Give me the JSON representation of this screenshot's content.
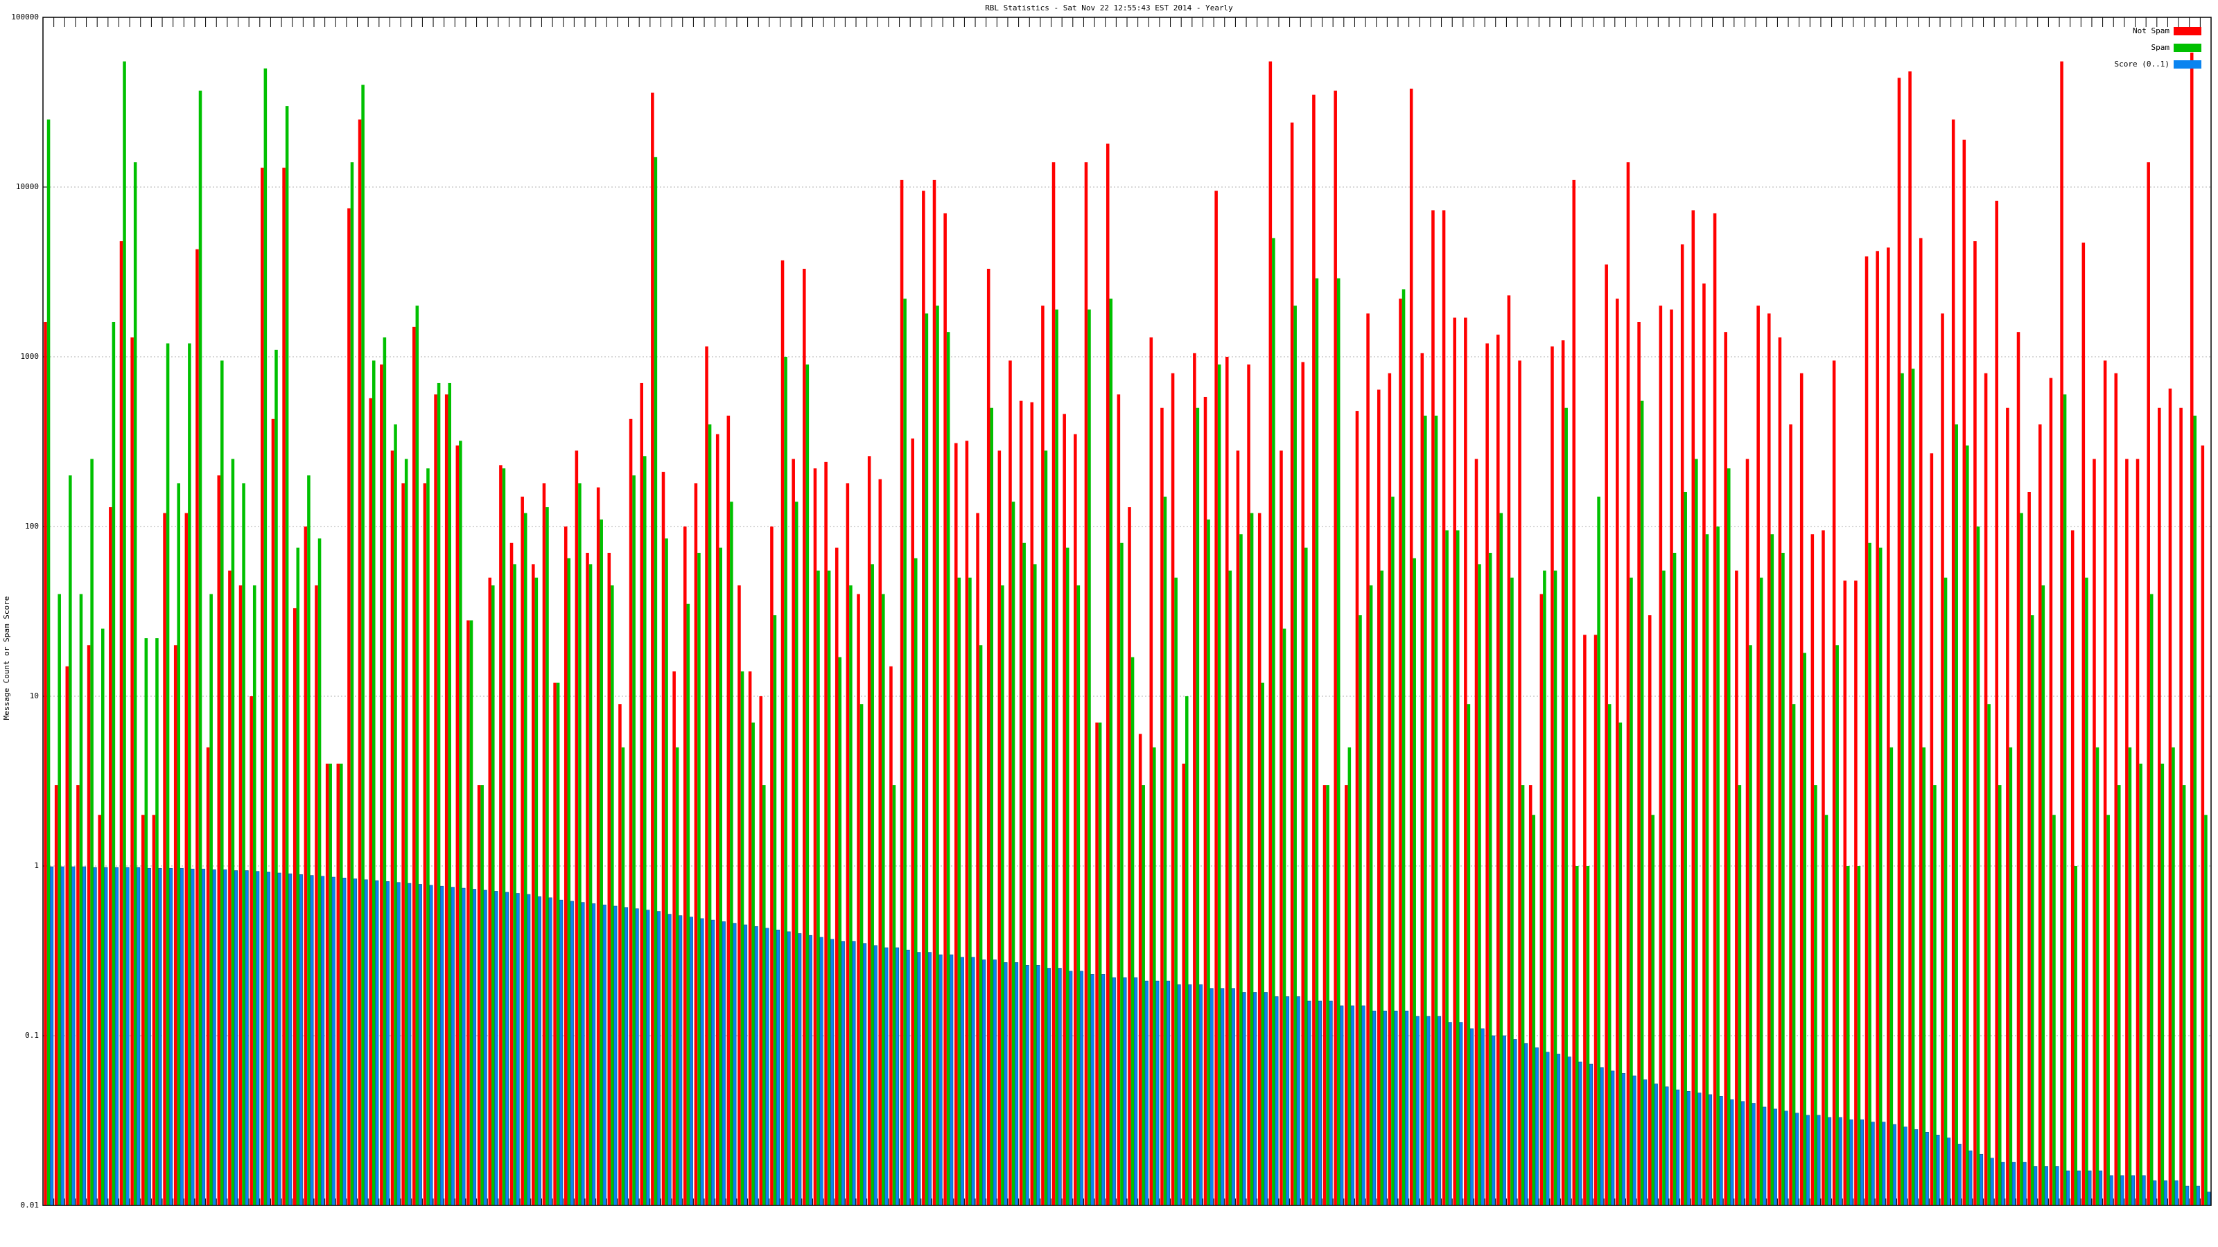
{
  "chart_data": {
    "type": "bar",
    "title": "RBL Statistics - Sat Nov 22 12:55:43 EST 2014 - Yearly",
    "y_label": "Message Count or Spam Score",
    "log_scale": true,
    "grid": true,
    "legend": "top-right",
    "ylim": [
      0.01,
      100000
    ],
    "yticks": [
      0.01,
      0.1,
      1,
      10,
      100,
      1000,
      10000,
      100000
    ],
    "series": [
      {
        "name": "Not Spam",
        "color": "#ff0000",
        "values": [
          1600,
          3,
          15,
          3,
          20,
          2,
          130,
          4800,
          1300,
          2,
          2,
          120,
          20,
          120,
          4300,
          5,
          200,
          55,
          45,
          10,
          13000,
          430,
          13000,
          33,
          100,
          45,
          4,
          4,
          7500,
          25000,
          570,
          900,
          280,
          180,
          1500,
          180,
          600,
          600,
          300,
          28,
          3,
          50,
          230,
          80,
          150,
          60,
          180,
          12,
          100,
          280,
          70,
          170,
          70,
          9,
          430,
          700,
          36000,
          210,
          14,
          100,
          180,
          1150,
          350,
          450,
          45,
          14,
          10,
          100,
          3700,
          250,
          3300,
          220,
          240,
          75,
          180,
          40,
          260,
          190,
          15,
          11000,
          330,
          9500,
          11000,
          7000,
          310,
          320,
          120,
          3300,
          280,
          950,
          550,
          540,
          2000,
          14000,
          460,
          350,
          14000,
          7,
          18000,
          600,
          130,
          6,
          1300,
          500,
          800,
          4,
          1050,
          580,
          9500,
          1000,
          280,
          900,
          120,
          55000,
          280,
          24000,
          930,
          35000,
          3,
          37000,
          3,
          480,
          1800,
          640,
          800,
          2200,
          38000,
          1050,
          7300,
          7300,
          1700,
          1700,
          250,
          1200,
          1350,
          2300,
          950,
          3,
          40,
          1150,
          1250,
          11000,
          23,
          23,
          3500,
          2200,
          14000,
          1600,
          30,
          2000,
          1900,
          4600,
          7300,
          2700,
          7000,
          1400,
          55,
          250,
          2000,
          1800,
          1300,
          400,
          800,
          90,
          95,
          950,
          48,
          48,
          3900,
          4200,
          4400,
          44000,
          48000,
          5000,
          270,
          1800,
          25000,
          19000,
          4800,
          800,
          8300,
          500,
          1400,
          160,
          400,
          750,
          55000,
          95,
          4700,
          250,
          950,
          800,
          250,
          250,
          14000,
          500,
          650,
          500,
          62000,
          300
        ]
      },
      {
        "name": "Spam",
        "color": "#00c000",
        "values": [
          25000,
          40,
          200,
          40,
          250,
          25,
          1600,
          55000,
          14000,
          22,
          22,
          1200,
          180,
          1200,
          37000,
          40,
          950,
          250,
          180,
          45,
          50000,
          1100,
          30000,
          75,
          200,
          85,
          4,
          4,
          14000,
          40000,
          950,
          1300,
          400,
          250,
          2000,
          220,
          700,
          700,
          320,
          28,
          3,
          45,
          220,
          60,
          120,
          50,
          130,
          12,
          65,
          180,
          60,
          110,
          45,
          5,
          200,
          260,
          15000,
          85,
          5,
          35,
          70,
          400,
          75,
          140,
          14,
          7,
          3,
          30,
          1000,
          140,
          900,
          55,
          55,
          17,
          45,
          9,
          60,
          40,
          3,
          2200,
          65,
          1800,
          2000,
          1400,
          50,
          50,
          20,
          500,
          45,
          140,
          80,
          60,
          280,
          1900,
          75,
          45,
          1900,
          7,
          2200,
          80,
          17,
          3,
          5,
          150,
          50,
          10,
          500,
          110,
          900,
          55,
          90,
          120,
          12,
          5000,
          25,
          2000,
          75,
          2900,
          3,
          2900,
          5,
          30,
          45,
          55,
          150,
          2500,
          65,
          450,
          450,
          95,
          95,
          9,
          60,
          70,
          120,
          50,
          3,
          2,
          55,
          55,
          500,
          1,
          1,
          150,
          9,
          7,
          50,
          550,
          2,
          55,
          70,
          160,
          250,
          90,
          100,
          220,
          3,
          20,
          50,
          90,
          70,
          9,
          18,
          3,
          2,
          20,
          1,
          1,
          80,
          75,
          5,
          800,
          850,
          5,
          3,
          50,
          400,
          300,
          100,
          9,
          3,
          5,
          120,
          30,
          45,
          2,
          600,
          1,
          50,
          5,
          2,
          3,
          5,
          4,
          40,
          4,
          5,
          3,
          450,
          2
        ]
      },
      {
        "name": "Score (0..1)",
        "color": "#0a84f0",
        "values": [
          0.99,
          0.99,
          0.99,
          0.99,
          0.98,
          0.98,
          0.98,
          0.98,
          0.98,
          0.97,
          0.97,
          0.97,
          0.97,
          0.96,
          0.96,
          0.95,
          0.95,
          0.94,
          0.94,
          0.93,
          0.92,
          0.91,
          0.9,
          0.89,
          0.88,
          0.87,
          0.86,
          0.85,
          0.84,
          0.83,
          0.82,
          0.81,
          0.8,
          0.79,
          0.78,
          0.77,
          0.76,
          0.75,
          0.74,
          0.73,
          0.72,
          0.71,
          0.7,
          0.69,
          0.68,
          0.66,
          0.65,
          0.63,
          0.62,
          0.61,
          0.6,
          0.59,
          0.58,
          0.57,
          0.56,
          0.55,
          0.54,
          0.52,
          0.51,
          0.5,
          0.49,
          0.48,
          0.47,
          0.46,
          0.45,
          0.44,
          0.43,
          0.42,
          0.41,
          0.4,
          0.39,
          0.38,
          0.37,
          0.36,
          0.36,
          0.35,
          0.34,
          0.33,
          0.33,
          0.32,
          0.31,
          0.31,
          0.3,
          0.3,
          0.29,
          0.29,
          0.28,
          0.28,
          0.27,
          0.27,
          0.26,
          0.26,
          0.25,
          0.25,
          0.24,
          0.24,
          0.23,
          0.23,
          0.22,
          0.22,
          0.22,
          0.21,
          0.21,
          0.21,
          0.2,
          0.2,
          0.2,
          0.19,
          0.19,
          0.19,
          0.18,
          0.18,
          0.18,
          0.17,
          0.17,
          0.17,
          0.16,
          0.16,
          0.16,
          0.15,
          0.15,
          0.15,
          0.14,
          0.14,
          0.14,
          0.14,
          0.13,
          0.13,
          0.13,
          0.12,
          0.12,
          0.11,
          0.11,
          0.1,
          0.1,
          0.095,
          0.09,
          0.085,
          0.08,
          0.078,
          0.075,
          0.07,
          0.068,
          0.065,
          0.062,
          0.06,
          0.058,
          0.055,
          0.052,
          0.05,
          0.048,
          0.047,
          0.046,
          0.045,
          0.044,
          0.042,
          0.041,
          0.04,
          0.038,
          0.037,
          0.036,
          0.035,
          0.034,
          0.034,
          0.033,
          0.033,
          0.032,
          0.032,
          0.031,
          0.031,
          0.03,
          0.029,
          0.028,
          0.027,
          0.026,
          0.025,
          0.023,
          0.021,
          0.02,
          0.019,
          0.018,
          0.018,
          0.018,
          0.017,
          0.017,
          0.017,
          0.016,
          0.016,
          0.016,
          0.016,
          0.015,
          0.015,
          0.015,
          0.015,
          0.014,
          0.014,
          0.014,
          0.013,
          0.013,
          0.012
        ]
      }
    ]
  }
}
